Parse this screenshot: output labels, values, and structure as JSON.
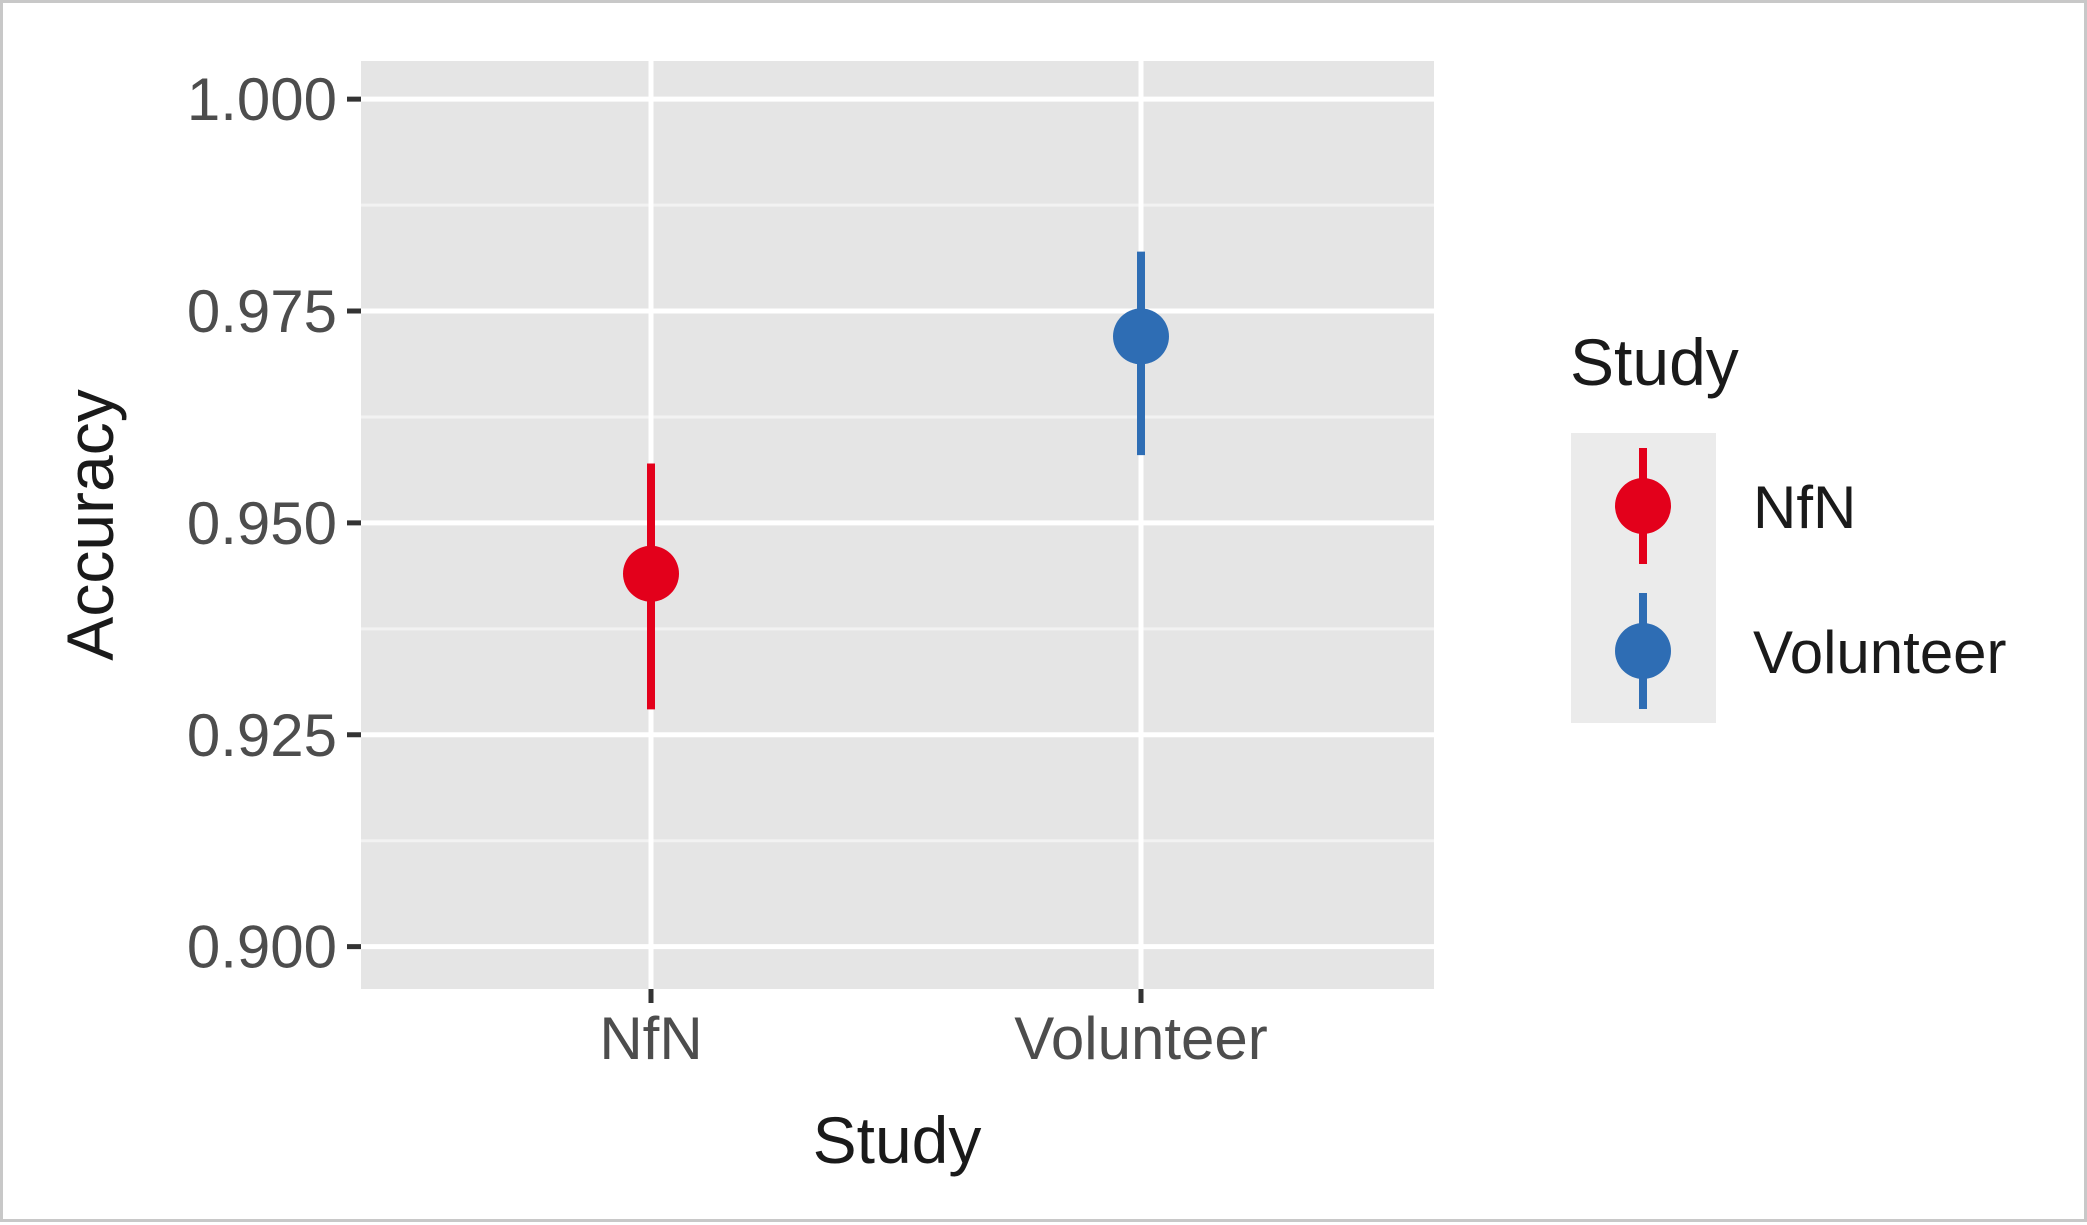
{
  "chart_data": {
    "type": "scatter",
    "subtype": "pointrange",
    "categories": [
      "NfN",
      "Volunteer"
    ],
    "series": [
      {
        "name": "NfN",
        "color": "#e3001b",
        "category": "NfN",
        "value": 0.944,
        "lower": 0.928,
        "upper": 0.957
      },
      {
        "name": "Volunteer",
        "color": "#2e6db4",
        "category": "Volunteer",
        "value": 0.972,
        "lower": 0.958,
        "upper": 0.982
      }
    ],
    "xlabel": "Study",
    "ylabel": "Accuracy",
    "ylim": [
      0.895,
      1.0045
    ],
    "yticks": [
      0.9,
      0.925,
      0.95,
      0.975,
      1.0
    ],
    "ytick_labels": [
      "0.900",
      "0.925",
      "0.950",
      "0.975",
      "1.000"
    ],
    "y_minor_gridlines": [
      0.9125,
      0.9375,
      0.9625,
      0.9875
    ],
    "grid": true,
    "panel_background": "#e5e5e5",
    "legend": {
      "title": "Study",
      "position": "right",
      "entries": [
        "NfN",
        "Volunteer"
      ]
    }
  }
}
